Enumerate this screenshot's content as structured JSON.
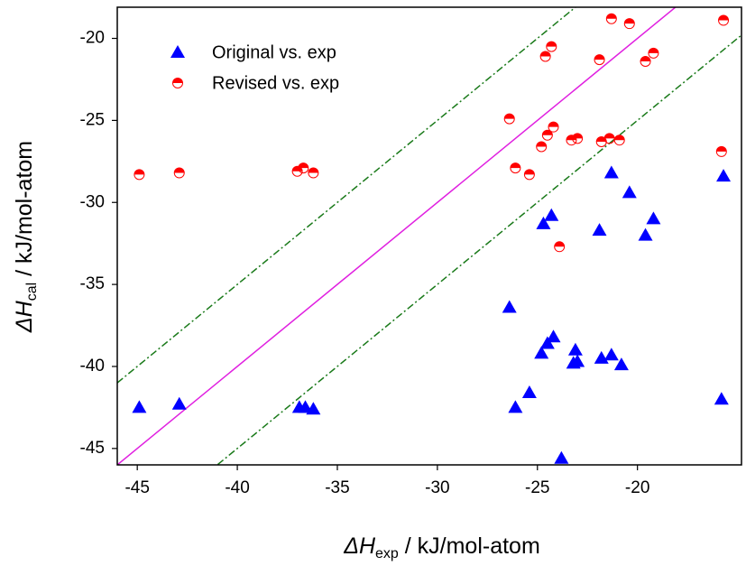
{
  "chart_data": {
    "type": "scatter",
    "x_label": {
      "symbol": "ΔH",
      "sub": "exp",
      "rest": " / kJ/mol-atom"
    },
    "y_label": {
      "symbol": "ΔH",
      "sub": "cal",
      "rest": " / kJ/mol-atom"
    },
    "xlim": [
      -46,
      -14.8
    ],
    "ylim": [
      -46,
      -18.1
    ],
    "xticks": [
      -45,
      -40,
      -35,
      -30,
      -25,
      -20
    ],
    "yticks": [
      -45,
      -40,
      -35,
      -30,
      -25,
      -20
    ],
    "legend": "upper left",
    "reference_lines": [
      {
        "slope": 1,
        "intercept": 0,
        "color": "#e020e0",
        "dash": "solid"
      },
      {
        "slope": 1,
        "intercept": 5,
        "color": "#1a7a1a",
        "dash": "dashdot"
      },
      {
        "slope": 1,
        "intercept": -5,
        "color": "#1a7a1a",
        "dash": "dashdot"
      }
    ],
    "series": [
      {
        "name": "Original vs. exp",
        "color": "#0000ff",
        "marker": "triangle",
        "x": [
          -44.9,
          -42.9,
          -36.9,
          -36.6,
          -36.2,
          -26.4,
          -26.1,
          -25.4,
          -24.8,
          -24.5,
          -24.7,
          -24.3,
          -24.2,
          -23.8,
          -23.1,
          -23.2,
          -23.0,
          -21.9,
          -21.8,
          -21.3,
          -21.3,
          -20.8,
          -20.4,
          -19.6,
          -19.2,
          -15.8,
          -15.7
        ],
        "values": [
          -42.5,
          -42.3,
          -42.5,
          -42.5,
          -42.6,
          -36.4,
          -42.5,
          -41.6,
          -39.2,
          -38.6,
          -31.3,
          -30.8,
          -38.2,
          -45.6,
          -39.0,
          -39.8,
          -39.7,
          -31.7,
          -39.5,
          -39.3,
          -28.2,
          -39.9,
          -29.4,
          -32.0,
          -31.0,
          -42.0,
          -28.4
        ]
      },
      {
        "name": "Revised vs. exp",
        "color": "#ff0000",
        "marker": "half-circle",
        "x": [
          -44.9,
          -42.9,
          -37.0,
          -36.7,
          -36.2,
          -26.4,
          -26.1,
          -25.4,
          -24.8,
          -24.6,
          -24.5,
          -24.3,
          -24.2,
          -23.9,
          -23.3,
          -23.0,
          -21.9,
          -21.8,
          -21.4,
          -21.3,
          -20.9,
          -20.4,
          -19.6,
          -19.2,
          -15.7,
          -15.8
        ],
        "values": [
          -28.3,
          -28.2,
          -28.1,
          -27.9,
          -28.2,
          -24.9,
          -27.9,
          -28.3,
          -26.6,
          -21.1,
          -25.9,
          -20.5,
          -25.4,
          -32.7,
          -26.2,
          -26.1,
          -21.3,
          -26.3,
          -26.1,
          -18.8,
          -26.2,
          -19.1,
          -21.4,
          -20.9,
          -18.9,
          -26.9
        ]
      }
    ]
  }
}
